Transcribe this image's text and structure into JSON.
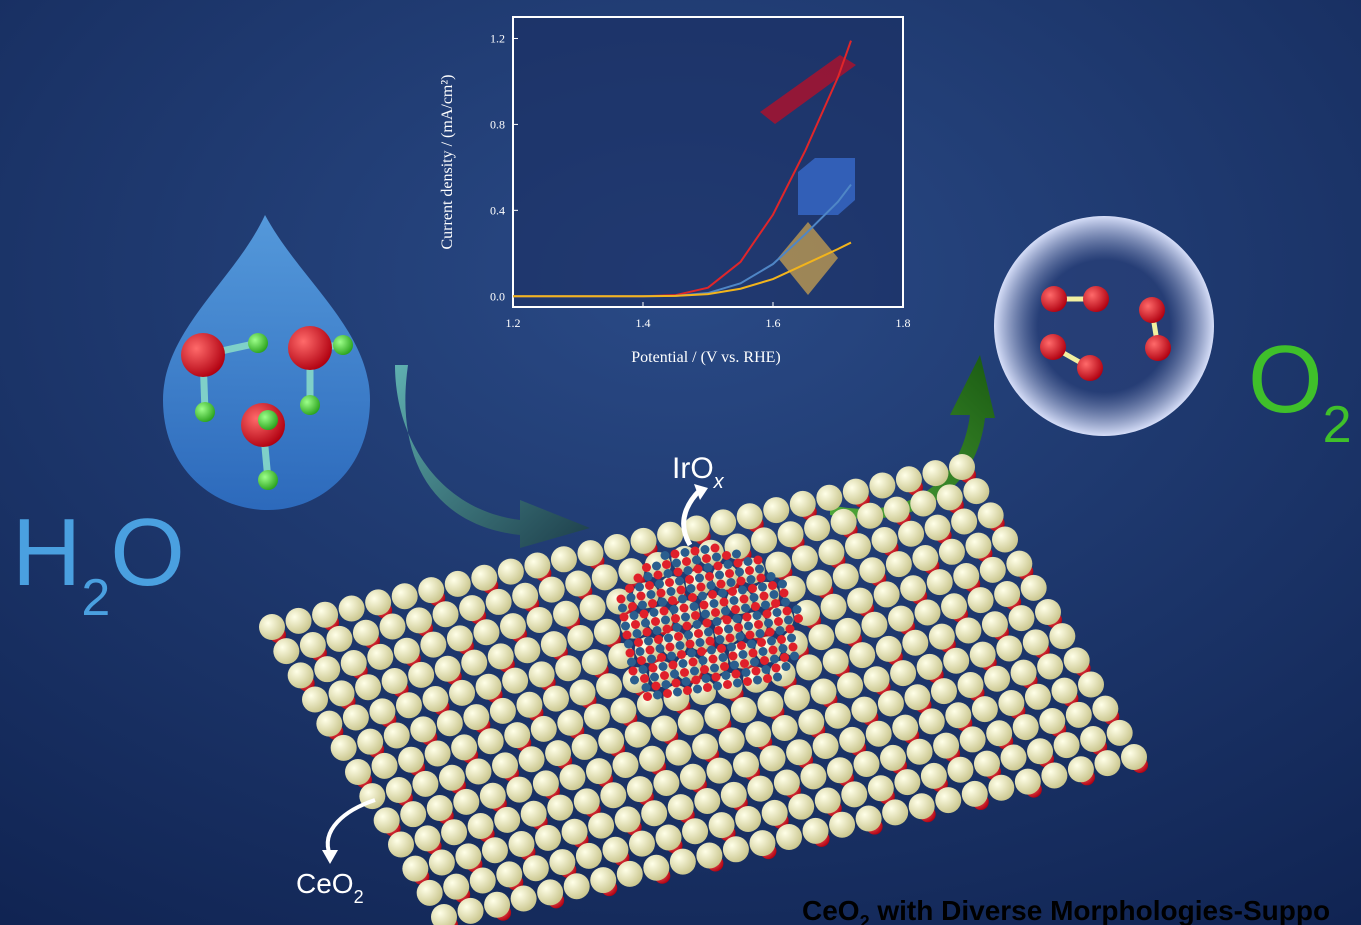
{
  "chart_data": {
    "type": "line",
    "x_label": "Potential / (V vs. RHE)",
    "y_label": "Current density / (mA/cm²)",
    "x": [
      1.2,
      1.3,
      1.4,
      1.45,
      1.5,
      1.55,
      1.6,
      1.65,
      1.7,
      1.72
    ],
    "series": [
      {
        "color": "#e0262a",
        "values": [
          0,
          0,
          0,
          0.005,
          0.04,
          0.16,
          0.38,
          0.68,
          1.02,
          1.19
        ]
      },
      {
        "color": "#4f86c6",
        "values": [
          0,
          0,
          0,
          0.002,
          0.015,
          0.06,
          0.15,
          0.29,
          0.44,
          0.52
        ]
      },
      {
        "color": "#f2b41c",
        "values": [
          0,
          0,
          0,
          0.002,
          0.01,
          0.035,
          0.08,
          0.15,
          0.22,
          0.25
        ]
      }
    ],
    "xlim": [
      1.2,
      1.8
    ],
    "ylim": [
      -0.05,
      1.3
    ],
    "xticks": [
      1.2,
      1.4,
      1.6,
      1.8
    ],
    "yticks": [
      {
        "value": 0,
        "label": "0.0"
      },
      0.4,
      0.8,
      1.2
    ]
  },
  "labels": {
    "water": [
      "H",
      "2",
      "O"
    ],
    "oxygen": [
      "O",
      "2"
    ],
    "iridium": [
      "IrO",
      "x"
    ],
    "ceria": [
      "CeO",
      "2"
    ],
    "caption": [
      "CeO",
      "2",
      " with Diverse Morphologies-Suppo"
    ]
  }
}
